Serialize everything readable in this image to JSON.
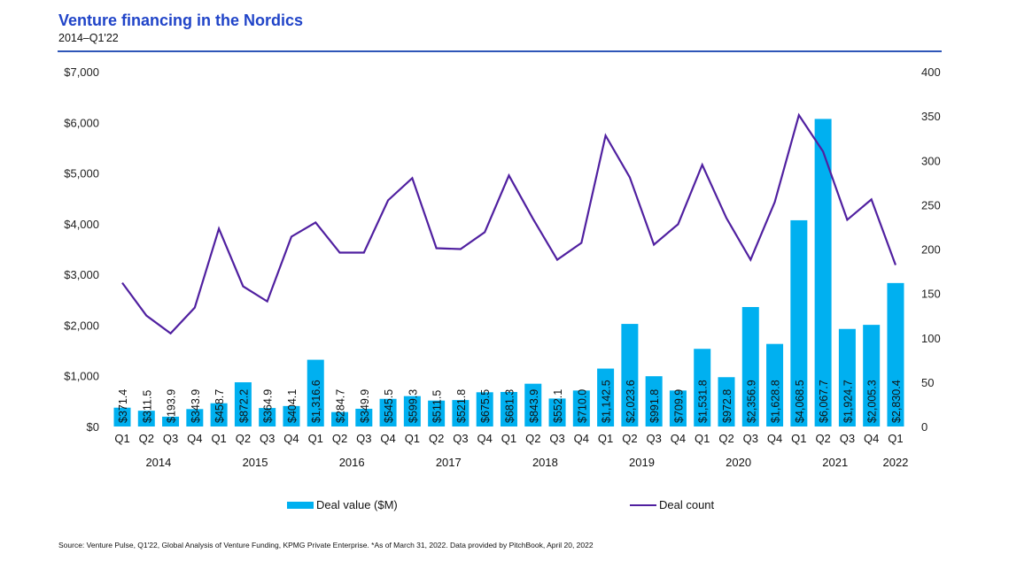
{
  "header": {
    "title": "Venture financing in the Nordics",
    "subtitle": "2014–Q1'22"
  },
  "legend": {
    "bar_label": "Deal value ($M)",
    "line_label": "Deal count"
  },
  "source": "Source: Venture Pulse, Q1'22, Global Analysis of Venture Funding, KPMG Private Enterprise. *As of March 31, 2022. Data provided by PitchBook, April 20, 2022",
  "colors": {
    "bar": "#00b0f0",
    "line": "#5020a0",
    "title": "#2044c8",
    "rule": "#2f56b8"
  },
  "chart_data": {
    "type": "bar+line",
    "title": "Venture financing in the Nordics",
    "subtitle": "2014–Q1'22",
    "categories": [
      "Q1",
      "Q2",
      "Q3",
      "Q4",
      "Q1",
      "Q2",
      "Q3",
      "Q4",
      "Q1",
      "Q2",
      "Q3",
      "Q4",
      "Q1",
      "Q2",
      "Q3",
      "Q4",
      "Q1",
      "Q2",
      "Q3",
      "Q4",
      "Q1",
      "Q2",
      "Q3",
      "Q4",
      "Q1",
      "Q2",
      "Q3",
      "Q4",
      "Q1",
      "Q2",
      "Q3",
      "Q4",
      "Q1"
    ],
    "years": [
      {
        "label": "2014",
        "count": 4
      },
      {
        "label": "2015",
        "count": 4
      },
      {
        "label": "2016",
        "count": 4
      },
      {
        "label": "2017",
        "count": 4
      },
      {
        "label": "2018",
        "count": 4
      },
      {
        "label": "2019",
        "count": 4
      },
      {
        "label": "2020",
        "count": 4
      },
      {
        "label": "2021",
        "count": 4
      },
      {
        "label": "2022",
        "count": 1
      }
    ],
    "series": [
      {
        "name": "Deal value ($M)",
        "type": "bar",
        "axis": "left",
        "values": [
          371.4,
          311.5,
          193.9,
          343.9,
          458.7,
          872.2,
          364.9,
          404.1,
          1316.6,
          284.7,
          349.9,
          545.5,
          599.3,
          511.5,
          521.8,
          675.5,
          681.3,
          843.9,
          552.1,
          710.0,
          1142.5,
          2023.6,
          991.8,
          709.9,
          1531.8,
          972.8,
          2356.9,
          1628.8,
          4068.5,
          6067.7,
          1924.7,
          2005.3,
          2830.4
        ],
        "labels": [
          "$371.4",
          "$311.5",
          "$193.9",
          "$343.9",
          "$458.7",
          "$872.2",
          "$364.9",
          "$404.1",
          "$1,316.6",
          "$284.7",
          "$349.9",
          "$545.5",
          "$599.3",
          "$511.5",
          "$521.8",
          "$675.5",
          "$681.3",
          "$843.9",
          "$552.1",
          "$710.0",
          "$1,142.5",
          "$2,023.6",
          "$991.8",
          "$709.9",
          "$1,531.8",
          "$972.8",
          "$2,356.9",
          "$1,628.8",
          "$4,068.5",
          "$6,067.7",
          "$1,924.7",
          "$2,005.3",
          "$2,830.4"
        ]
      },
      {
        "name": "Deal count",
        "type": "line",
        "axis": "right",
        "values": [
          162,
          125,
          105,
          134,
          223,
          158,
          141,
          214,
          230,
          196,
          196,
          255,
          280,
          201,
          200,
          219,
          283,
          234,
          188,
          207,
          328,
          281,
          205,
          228,
          295,
          235,
          188,
          253,
          351,
          310,
          233,
          256,
          182
        ]
      }
    ],
    "y_left": {
      "min": 0,
      "max": 7000,
      "ticks": [
        0,
        1000,
        2000,
        3000,
        4000,
        5000,
        6000,
        7000
      ],
      "tick_labels": [
        "$0",
        "$1,000",
        "$2,000",
        "$3,000",
        "$4,000",
        "$5,000",
        "$6,000",
        "$7,000"
      ]
    },
    "y_right": {
      "min": 0,
      "max": 400,
      "ticks": [
        0,
        50,
        100,
        150,
        200,
        250,
        300,
        350,
        400
      ],
      "tick_labels": [
        "0",
        "50",
        "100",
        "150",
        "200",
        "250",
        "300",
        "350",
        "400"
      ]
    },
    "grid": false,
    "legend_position": "bottom"
  }
}
